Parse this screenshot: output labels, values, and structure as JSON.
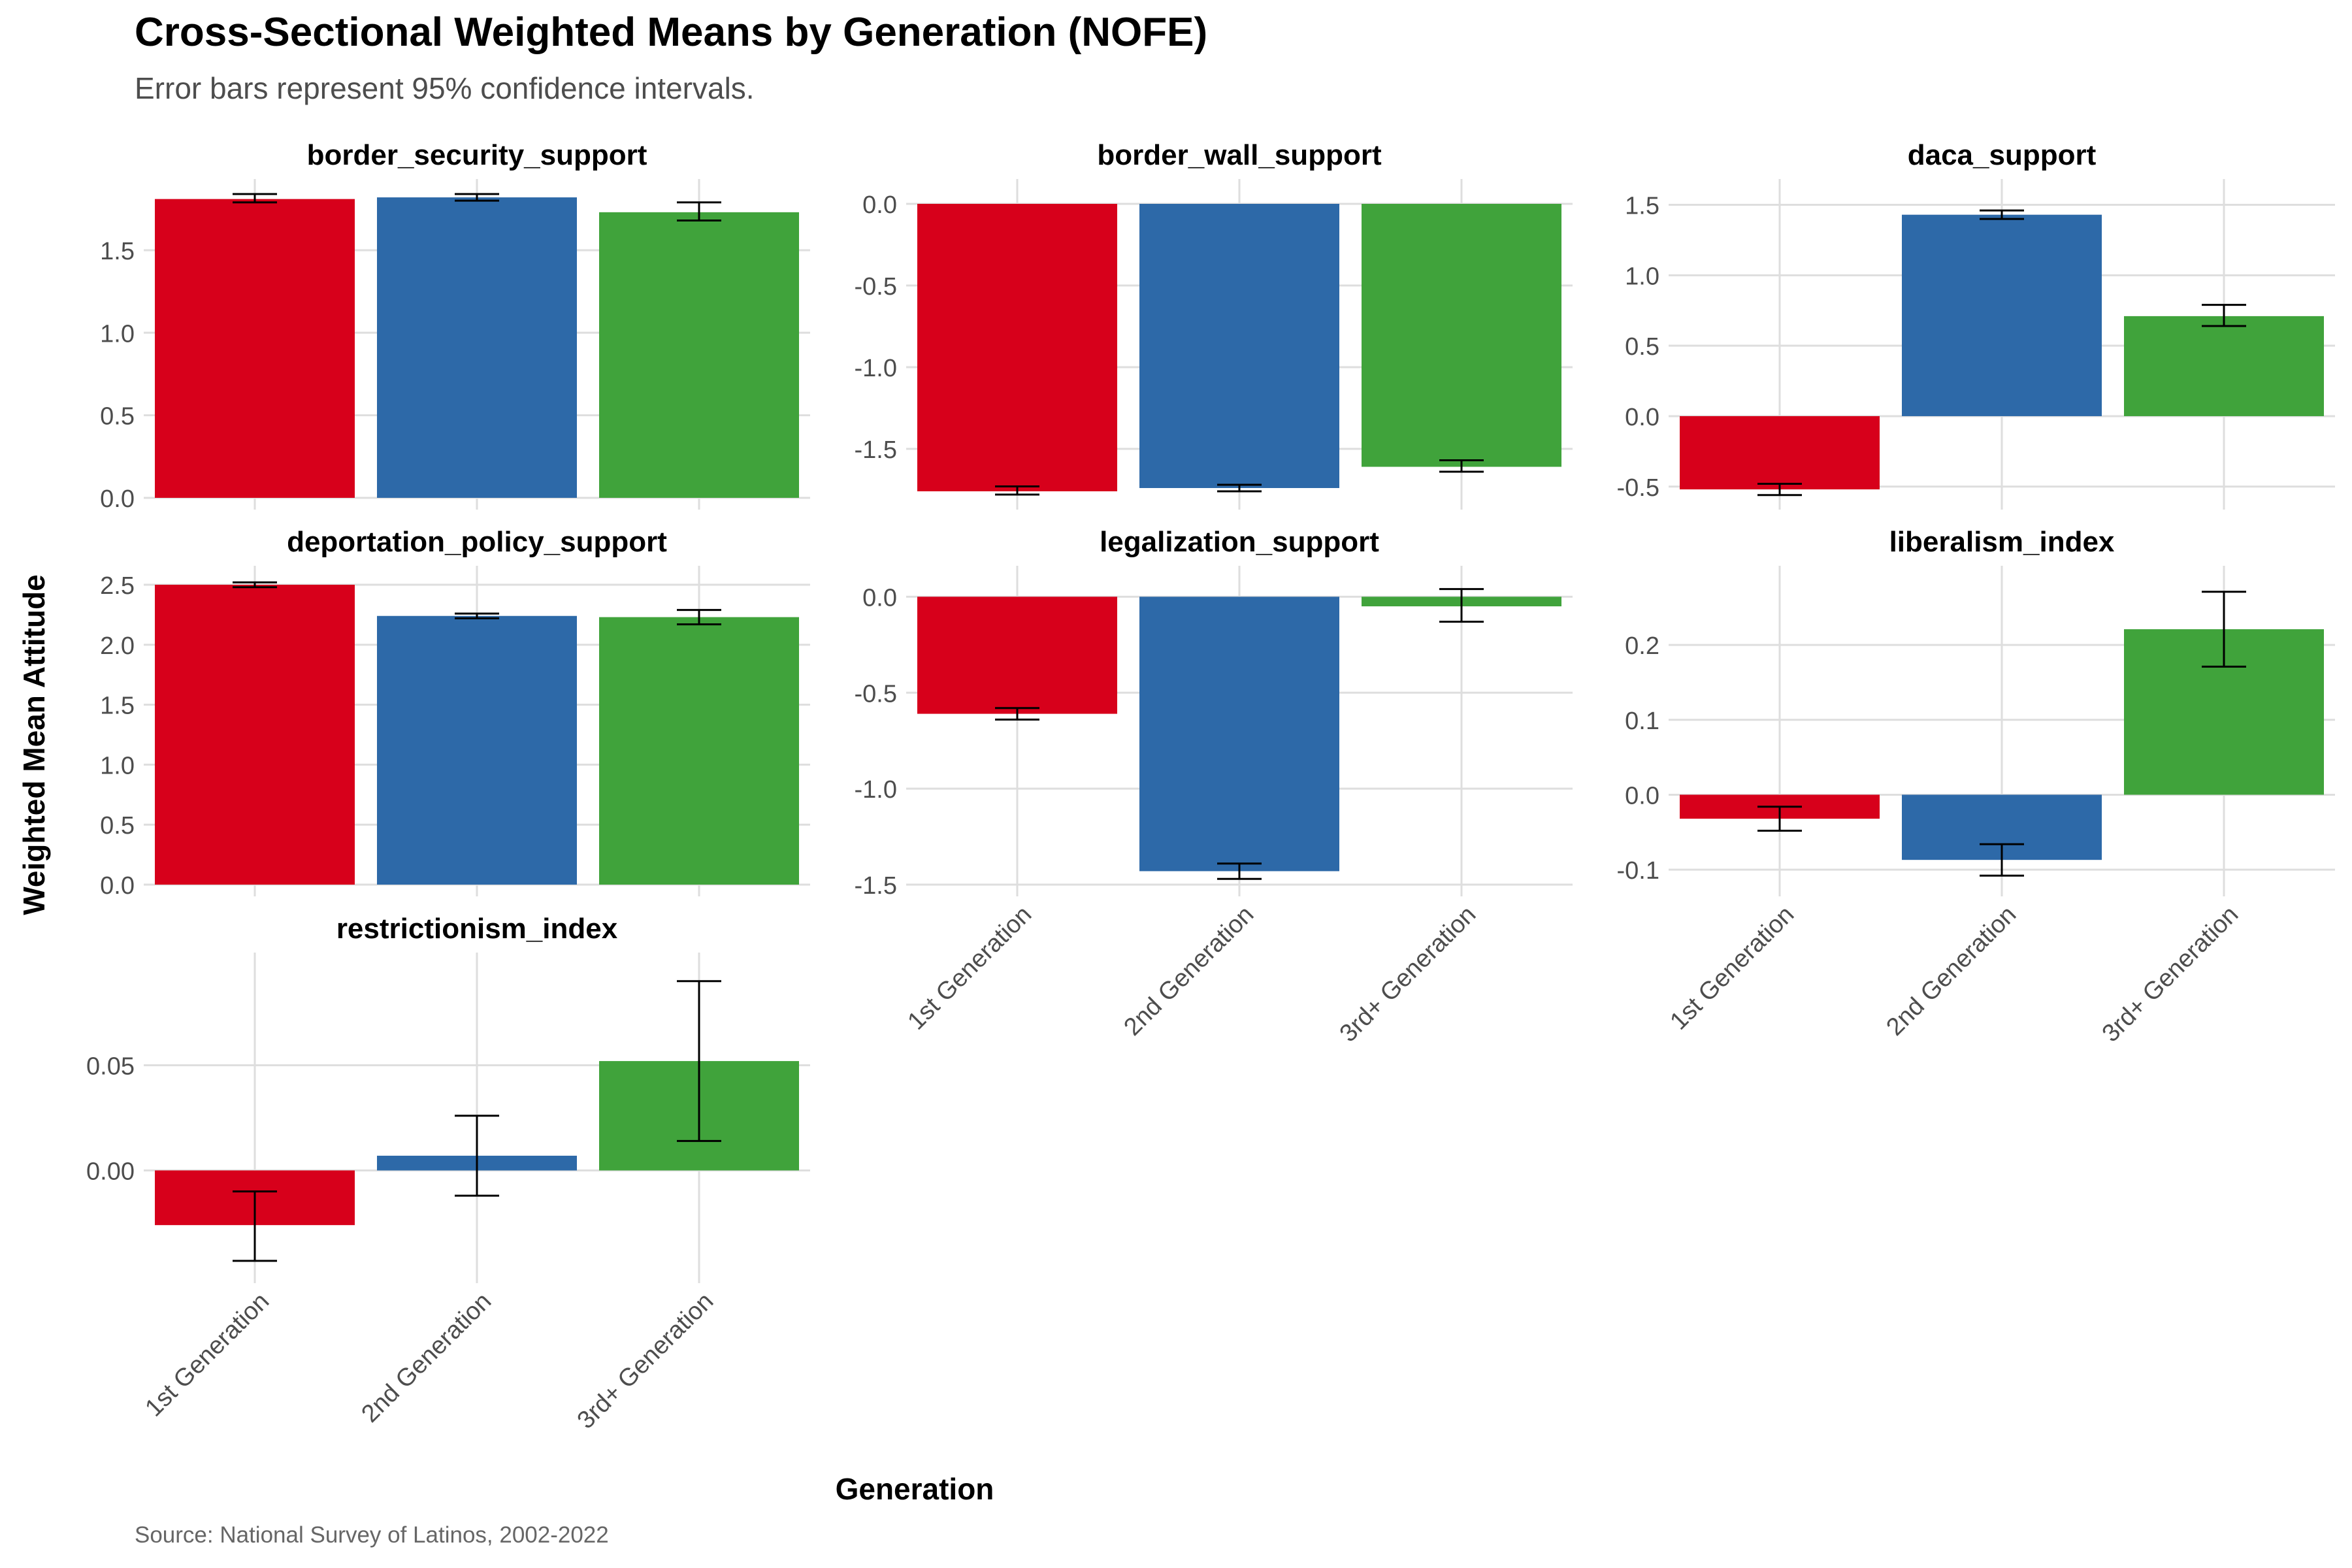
{
  "title": "Cross-Sectional Weighted Means by Generation (NOFE)",
  "subtitle": "Error bars represent 95% confidence intervals.",
  "caption": "Source: National Survey of Latinos, 2002-2022",
  "xlabel": "Generation",
  "ylabel": "Weighted Mean Attitude",
  "colors": {
    "1st Generation": "#d7001b",
    "2nd Generation": "#2d69a8",
    "3rd+ Generation": "#40a33b"
  },
  "chart_data": [
    {
      "type": "bar",
      "title": "border_security_support",
      "categories": [
        "1st Generation",
        "2nd Generation",
        "3rd+ Generation"
      ],
      "values": [
        1.81,
        1.82,
        1.73
      ],
      "ci_low": [
        1.79,
        1.8,
        1.68
      ],
      "ci_high": [
        1.84,
        1.84,
        1.79
      ],
      "ylim": [
        0,
        1.86
      ],
      "yticks": [
        0,
        0.5,
        1.0,
        1.5
      ],
      "ytick_labels": [
        "0.0",
        "0.5",
        "1.0",
        "1.5"
      ],
      "show_xticks": false
    },
    {
      "type": "bar",
      "title": "border_wall_support",
      "categories": [
        "1st Generation",
        "2nd Generation",
        "3rd+ Generation"
      ],
      "values": [
        -1.76,
        -1.74,
        -1.61
      ],
      "ci_low": [
        -1.78,
        -1.76,
        -1.64
      ],
      "ci_high": [
        -1.73,
        -1.72,
        -1.57
      ],
      "ylim": [
        -1.8,
        0.08
      ],
      "yticks": [
        0,
        -0.5,
        -1.0,
        -1.5
      ],
      "ytick_labels": [
        "0.0",
        "-0.5",
        "-1.0",
        "-1.5"
      ],
      "show_xticks": false
    },
    {
      "type": "bar",
      "title": "daca_support",
      "categories": [
        "1st Generation",
        "2nd Generation",
        "3rd+ Generation"
      ],
      "values": [
        -0.52,
        1.43,
        0.71
      ],
      "ci_low": [
        -0.56,
        1.4,
        0.64
      ],
      "ci_high": [
        -0.48,
        1.46,
        0.79
      ],
      "ylim": [
        -0.58,
        1.6
      ],
      "yticks": [
        -0.5,
        0,
        0.5,
        1.0,
        1.5
      ],
      "ytick_labels": [
        "-0.5",
        "0.0",
        "0.5",
        "1.0",
        "1.5"
      ],
      "show_xticks": false
    },
    {
      "type": "bar",
      "title": "deportation_policy_support",
      "categories": [
        "1st Generation",
        "2nd Generation",
        "3rd+ Generation"
      ],
      "values": [
        2.5,
        2.24,
        2.23
      ],
      "ci_low": [
        2.48,
        2.22,
        2.17
      ],
      "ci_high": [
        2.52,
        2.26,
        2.29
      ],
      "ylim": [
        0,
        2.56
      ],
      "yticks": [
        0,
        0.5,
        1.0,
        1.5,
        2.0,
        2.5
      ],
      "ytick_labels": [
        "0.0",
        "0.5",
        "1.0",
        "1.5",
        "2.0",
        "2.5"
      ],
      "show_xticks": false
    },
    {
      "type": "bar",
      "title": "legalization_support",
      "categories": [
        "1st Generation",
        "2nd Generation",
        "3rd+ Generation"
      ],
      "values": [
        -0.61,
        -1.43,
        -0.05
      ],
      "ci_low": [
        -0.64,
        -1.47,
        -0.13
      ],
      "ci_high": [
        -0.58,
        -1.39,
        0.04
      ],
      "ylim": [
        -1.5,
        0.1
      ],
      "yticks": [
        0,
        -0.5,
        -1.0,
        -1.5
      ],
      "ytick_labels": [
        "0.0",
        "-0.5",
        "-1.0",
        "-1.5"
      ],
      "show_xticks": true
    },
    {
      "type": "bar",
      "title": "liberalism_index",
      "categories": [
        "1st Generation",
        "2nd Generation",
        "3rd+ Generation"
      ],
      "values": [
        -0.032,
        -0.087,
        0.221
      ],
      "ci_low": [
        -0.048,
        -0.108,
        0.171
      ],
      "ci_high": [
        -0.016,
        -0.066,
        0.271
      ],
      "ylim": [
        -0.12,
        0.29
      ],
      "yticks": [
        -0.1,
        0,
        0.1,
        0.2
      ],
      "ytick_labels": [
        "-0.1",
        "0.0",
        "0.1",
        "0.2"
      ],
      "show_xticks": true
    },
    {
      "type": "bar",
      "title": "restrictionism_index",
      "categories": [
        "1st Generation",
        "2nd Generation",
        "3rd+ Generation"
      ],
      "values": [
        -0.026,
        0.007,
        0.052
      ],
      "ci_low": [
        -0.043,
        -0.012,
        0.014
      ],
      "ci_high": [
        -0.01,
        0.026,
        0.09
      ],
      "ylim": [
        -0.048,
        0.098
      ],
      "yticks": [
        0,
        0.05
      ],
      "ytick_labels": [
        "0.00",
        "0.05"
      ],
      "show_xticks": true
    }
  ]
}
